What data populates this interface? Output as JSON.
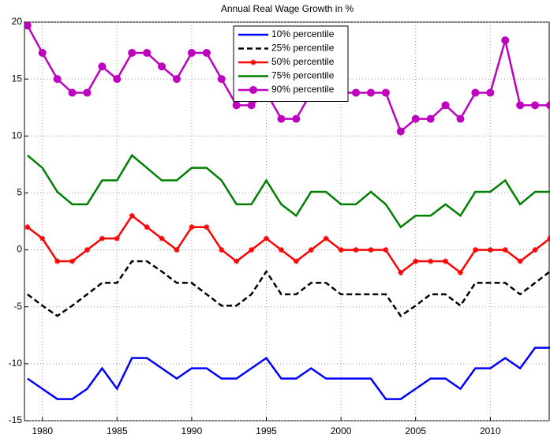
{
  "chart_data": {
    "type": "line",
    "title": "Annual Real Wage Growth in %",
    "x": [
      1979,
      1980,
      1981,
      1982,
      1983,
      1984,
      1985,
      1986,
      1987,
      1988,
      1989,
      1990,
      1991,
      1992,
      1993,
      1994,
      1995,
      1996,
      1997,
      1998,
      1999,
      2000,
      2001,
      2002,
      2003,
      2004,
      2005,
      2006,
      2007,
      2008,
      2009,
      2010,
      2011,
      2012,
      2013,
      2014
    ],
    "series": [
      {
        "name": "10% percentile",
        "color": "#0000ff",
        "linestyle": "solid",
        "marker": "none",
        "values": [
          -11.3,
          -12.2,
          -13.1,
          -13.1,
          -12.2,
          -10.4,
          -12.2,
          -9.5,
          -9.5,
          -10.4,
          -11.3,
          -10.4,
          -10.4,
          -11.3,
          -11.3,
          -10.4,
          -9.5,
          -11.3,
          -11.3,
          -10.4,
          -11.3,
          -11.3,
          -11.3,
          -11.3,
          -13.1,
          -13.1,
          -12.2,
          -11.3,
          -11.3,
          -12.2,
          -10.4,
          -10.4,
          -9.5,
          -10.4,
          -8.6,
          -8.6
        ]
      },
      {
        "name": "25% percentile",
        "color": "#000000",
        "linestyle": "dashed",
        "marker": "none",
        "values": [
          -3.9,
          -4.9,
          -5.8,
          -4.9,
          -3.9,
          -2.9,
          -2.9,
          -1,
          -1,
          -1.9,
          -2.9,
          -2.9,
          -3.9,
          -4.9,
          -4.9,
          -3.9,
          -1.9,
          -3.9,
          -3.9,
          -2.9,
          -2.9,
          -3.9,
          -3.9,
          -3.9,
          -3.9,
          -5.8,
          -4.9,
          -3.9,
          -3.9,
          -4.9,
          -2.9,
          -2.9,
          -2.9,
          -3.9,
          -2.9,
          -1.9
        ]
      },
      {
        "name": "50% percentile",
        "color": "#ff0000",
        "linestyle": "solid",
        "marker": "star",
        "values": [
          2,
          1,
          -1,
          -1,
          0,
          1,
          1,
          3,
          2,
          1,
          0,
          2,
          2,
          0,
          -1,
          0,
          1,
          0,
          -1,
          0,
          1,
          0,
          0,
          0,
          0,
          -2,
          -1,
          -1,
          -1,
          -2,
          0,
          0,
          0,
          -1,
          0,
          1
        ]
      },
      {
        "name": "75% percentile",
        "color": "#008000",
        "linestyle": "solid",
        "marker": "none",
        "values": [
          8.3,
          7.2,
          5.1,
          4,
          4,
          6.1,
          6.1,
          8.3,
          7.2,
          6.1,
          6.1,
          7.2,
          7.2,
          6.1,
          4,
          4,
          6.1,
          4,
          3,
          5.1,
          5.1,
          4,
          4,
          5.1,
          4,
          2,
          3,
          3,
          4,
          3,
          5.1,
          5.1,
          6.1,
          4,
          5.1,
          5.1
        ]
      },
      {
        "name": "90% percentile",
        "color": "#bf00bf",
        "linestyle": "solid",
        "marker": "circle",
        "values": [
          19.7,
          17.3,
          15,
          13.8,
          13.8,
          16.1,
          15,
          17.3,
          17.3,
          16.1,
          15,
          17.3,
          17.3,
          15,
          12.7,
          12.7,
          13.8,
          11.5,
          11.5,
          13.8,
          13.8,
          13.8,
          13.8,
          13.8,
          13.8,
          10.4,
          11.5,
          11.5,
          12.7,
          11.5,
          13.8,
          13.8,
          18.4,
          12.7,
          12.7,
          12.7
        ]
      }
    ],
    "xlim": [
      1978.8,
      2014
    ],
    "ylim": [
      -15,
      20
    ],
    "xticks": [
      1980,
      1985,
      1990,
      1995,
      2000,
      2005,
      2010
    ],
    "yticks": [
      -15,
      -10,
      -5,
      0,
      5,
      10,
      15,
      20
    ],
    "grid": true,
    "legend": "top-center"
  }
}
